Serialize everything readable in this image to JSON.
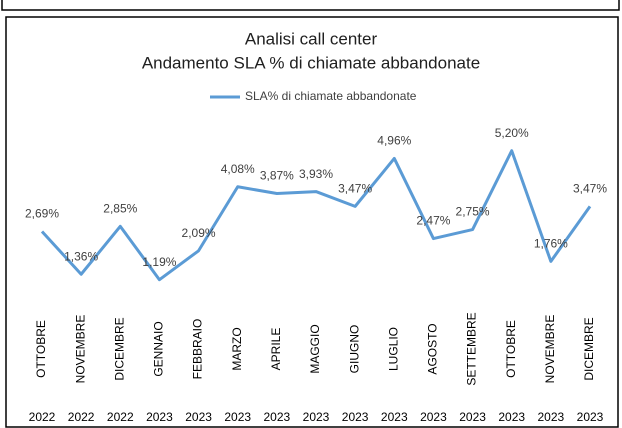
{
  "chart_data": {
    "type": "line",
    "title": "Analisi call center",
    "subtitle": "Andamento SLA % di chiamate abbandonate",
    "categories": [
      "OTTOBRE",
      "NOVEMBRE",
      "DICEMBRE",
      "GENNAIO",
      "FEBBRAIO",
      "MARZO",
      "APRILE",
      "MAGGIO",
      "GIUGNO",
      "LUGLIO",
      "AGOSTO",
      "SETTEMBRE",
      "OTTOBRE",
      "NOVEMBRE",
      "DICEMBRE"
    ],
    "years": [
      "2022",
      "2022",
      "2022",
      "2023",
      "2023",
      "2023",
      "2023",
      "2023",
      "2023",
      "2023",
      "2023",
      "2023",
      "2023",
      "2023",
      "2023"
    ],
    "series": [
      {
        "name": "SLA% di chiamate abbandonate",
        "color": "#5b9bd5",
        "values": [
          2.69,
          1.36,
          2.85,
          1.19,
          2.09,
          4.08,
          3.87,
          3.93,
          3.47,
          4.96,
          2.47,
          2.75,
          5.2,
          1.76,
          3.47
        ],
        "value_labels": [
          "2,69%",
          "1,36%",
          "2,85%",
          "1,19%",
          "2,09%",
          "4,08%",
          "3,87%",
          "3,93%",
          "3,47%",
          "4,96%",
          "2,47%",
          "2,75%",
          "5,20%",
          "1,76%",
          "3,47%"
        ]
      }
    ],
    "ylim": [
      0,
      6
    ],
    "legend": "top"
  }
}
